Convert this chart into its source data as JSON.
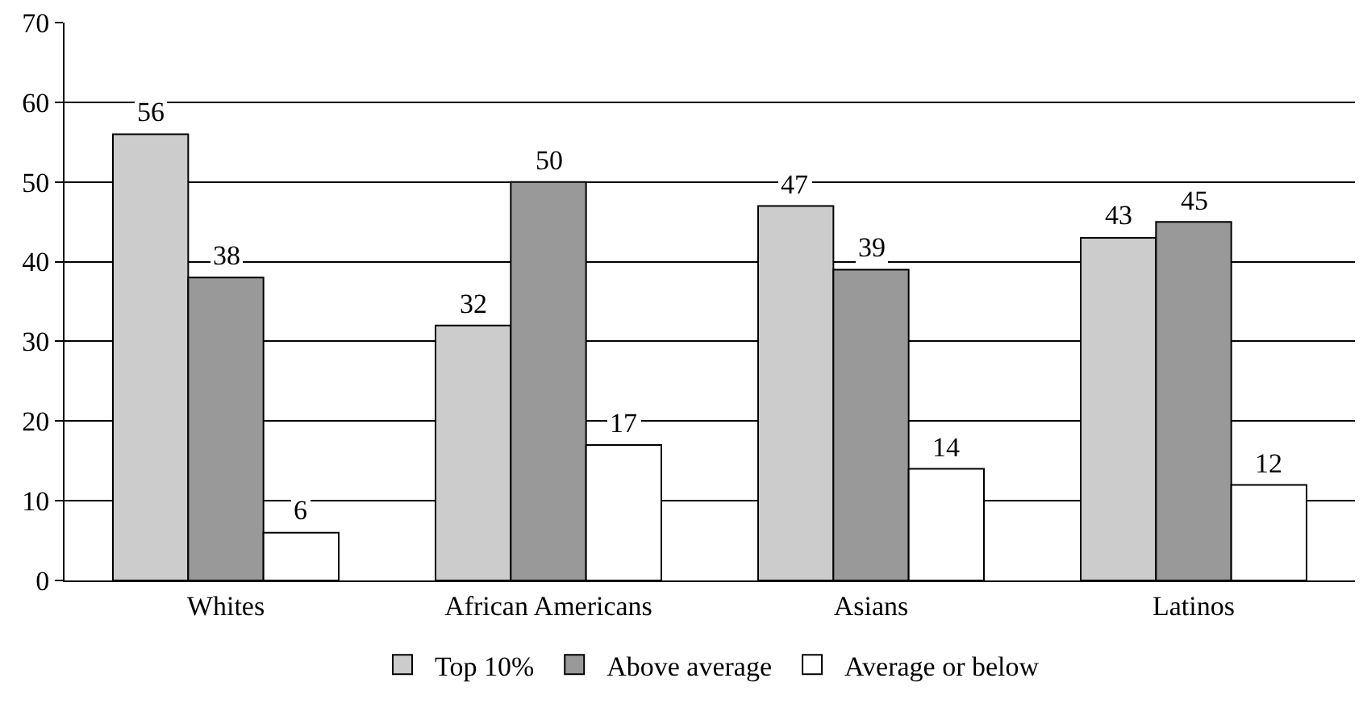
{
  "chart_data": {
    "type": "bar",
    "categories": [
      "Whites",
      "African Americans",
      "Asians",
      "Latinos"
    ],
    "series": [
      {
        "name": "Top 10%",
        "color": "#cccccc",
        "values": [
          56,
          32,
          47,
          43
        ]
      },
      {
        "name": "Above average",
        "color": "#999999",
        "values": [
          38,
          50,
          39,
          45
        ]
      },
      {
        "name": "Average or below",
        "color": "#ffffff",
        "values": [
          6,
          17,
          14,
          12
        ]
      }
    ],
    "ylim": [
      0,
      70
    ],
    "yticks": [
      0,
      10,
      20,
      30,
      40,
      50,
      60,
      70
    ],
    "grid": "y",
    "legend": "bottom",
    "data_labels": true
  }
}
